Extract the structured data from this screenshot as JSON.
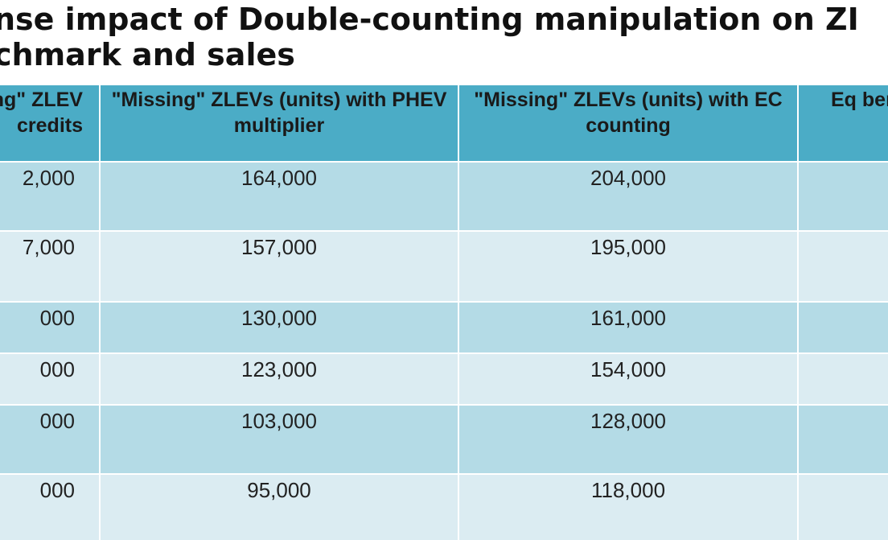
{
  "title": {
    "line1": "nse impact of Double-counting manipulation on ZI",
    "line2": "chmark and sales"
  },
  "table": {
    "headers": [
      "\"Missing\" ZLEV credits",
      "\"Missing\" ZLEVs (units) with PHEV multiplier",
      "\"Missing\" ZLEVs (units) with EC counting",
      "Eq benc"
    ],
    "rows": [
      [
        "2,000",
        "164,000",
        "204,000",
        ""
      ],
      [
        "7,000",
        "157,000",
        "195,000",
        ""
      ],
      [
        "000",
        "130,000",
        "161,000",
        ""
      ],
      [
        "000",
        "123,000",
        "154,000",
        ""
      ],
      [
        "000",
        "103,000",
        "128,000",
        ""
      ],
      [
        "000",
        "95,000",
        "118,000",
        ""
      ]
    ]
  },
  "colors": {
    "header_bg": "#4bacc6",
    "row_dark": "#b4dbe6",
    "row_light": "#dbecf2"
  }
}
